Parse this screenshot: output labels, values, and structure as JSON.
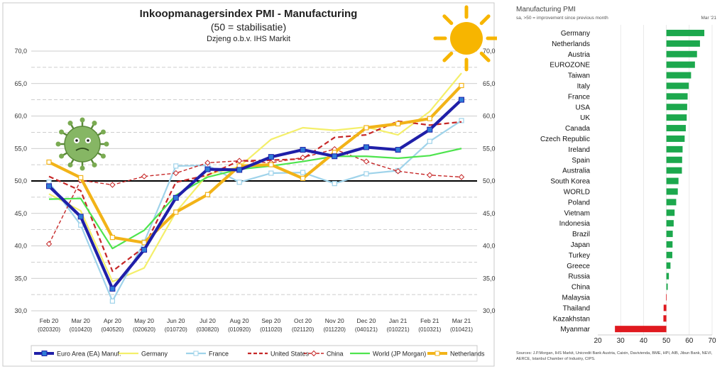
{
  "chart_data": [
    {
      "type": "line",
      "title": "Inkoopmanagersindex PMI - Manufacturing",
      "subtitle": "(50 = stabilisatie)",
      "source_note": "Dzjeng o.b.v. IHS Markit",
      "categories": [
        "Feb 20",
        "Mar 20",
        "Apr 20",
        "May 20",
        "Jun 20",
        "Jul 20",
        "Aug 20",
        "Sep 20",
        "Oct 20",
        "Nov 20",
        "Dec 20",
        "Jan 21",
        "Feb 21",
        "Mar 21"
      ],
      "category_dates": [
        "(020320)",
        "(010420)",
        "(040520)",
        "(020620)",
        "(010720)",
        "(030820)",
        "(010920)",
        "(011020)",
        "(021120)",
        "(011220)",
        "(040121)",
        "(010221)",
        "(010321)",
        "(010421)"
      ],
      "ylim": [
        30,
        70
      ],
      "y_ticks": [
        "30,0",
        "35,0",
        "40,0",
        "45,0",
        "50,0",
        "55,0",
        "60,0",
        "65,0",
        "70,0"
      ],
      "reference_line": 50,
      "series": [
        {
          "name": "Euro Area (EA) Manuf.",
          "color": "#1f1fa8",
          "style": "solid-thick",
          "marker": "square",
          "values": [
            49.2,
            44.5,
            33.4,
            39.4,
            47.4,
            51.8,
            51.7,
            53.7,
            54.8,
            53.8,
            55.2,
            54.8,
            57.9,
            62.5
          ]
        },
        {
          "name": "Germany",
          "color": "#f4ef6a",
          "style": "solid",
          "marker": "none",
          "values": [
            48.0,
            45.4,
            34.5,
            36.6,
            45.2,
            51.0,
            52.2,
            56.4,
            58.2,
            57.8,
            58.3,
            57.1,
            60.7,
            66.6
          ]
        },
        {
          "name": "France",
          "color": "#9fd3ea",
          "style": "solid",
          "marker": "square-open",
          "values": [
            49.8,
            43.2,
            31.5,
            40.6,
            52.3,
            52.4,
            49.8,
            51.2,
            51.3,
            49.6,
            51.1,
            51.6,
            56.1,
            59.3
          ]
        },
        {
          "name": "United States",
          "color": "#c62828",
          "style": "dashed",
          "marker": "none",
          "values": [
            50.7,
            48.5,
            36.1,
            39.8,
            49.8,
            50.9,
            53.1,
            53.2,
            53.4,
            56.7,
            57.1,
            59.2,
            58.6,
            59.1
          ]
        },
        {
          "name": "China",
          "color": "#c62828",
          "style": "dashed-thin",
          "marker": "diamond-open",
          "values": [
            40.3,
            50.1,
            49.4,
            50.7,
            51.2,
            52.8,
            53.1,
            52.8,
            53.6,
            54.9,
            53.0,
            51.5,
            50.9,
            50.6
          ]
        },
        {
          "name": "World (JP Morgan)",
          "color": "#4ee44e",
          "style": "solid",
          "marker": "none",
          "values": [
            47.2,
            47.3,
            39.6,
            42.4,
            47.8,
            50.6,
            51.8,
            52.3,
            53.0,
            53.8,
            53.8,
            53.5,
            53.9,
            55.0
          ]
        },
        {
          "name": "Netherlands",
          "color": "#f2b318",
          "style": "solid-thick",
          "marker": "square-open",
          "values": [
            52.9,
            50.5,
            41.3,
            40.5,
            45.2,
            47.9,
            52.3,
            52.5,
            50.4,
            54.4,
            58.2,
            58.8,
            59.6,
            64.7
          ]
        }
      ]
    },
    {
      "type": "bar",
      "orientation": "horizontal",
      "title": "Manufacturing PMI",
      "subtitle": "sa, >50 = improvement since previous month",
      "date_label": "Mar '21",
      "x_ticks": [
        "20",
        "30",
        "40",
        "50",
        "60",
        "70"
      ],
      "xlim": [
        20,
        70
      ],
      "baseline": 50,
      "positive_color": "#1ca84d",
      "negative_color": "#e0191f",
      "categories": [
        "Germany",
        "Netherlands",
        "Austria",
        "EUROZONE",
        "Taiwan",
        "Italy",
        "France",
        "USA",
        "UK",
        "Canada",
        "Czech Republic",
        "Ireland",
        "Spain",
        "Australia",
        "South Korea",
        "WORLD",
        "Poland",
        "Vietnam",
        "Indonesia",
        "Brazil",
        "Japan",
        "Turkey",
        "Greece",
        "Russia",
        "China",
        "Malaysia",
        "Thailand",
        "Kazakhstan",
        "Myanmar"
      ],
      "values": [
        66.6,
        64.7,
        63.4,
        62.5,
        60.8,
        59.8,
        59.3,
        59.1,
        58.9,
        58.5,
        58.0,
        57.1,
        56.9,
        56.8,
        55.3,
        55.0,
        54.3,
        53.6,
        53.2,
        52.8,
        52.7,
        52.6,
        51.8,
        51.1,
        50.6,
        49.9,
        48.8,
        48.7,
        27.5
      ]
    }
  ],
  "sources": "Sources: J.P.Morgan, IHS Markit, Unicredit Bank Austria, Caixin, Davivienda, BME, HPI, AIB, Jibun Bank, NEVI, AERCE, Istanbul Chamber of Industry, CIPS.",
  "decor": {
    "virus_icon": "coronavirus-icon",
    "sun_icon": "sun-icon"
  }
}
